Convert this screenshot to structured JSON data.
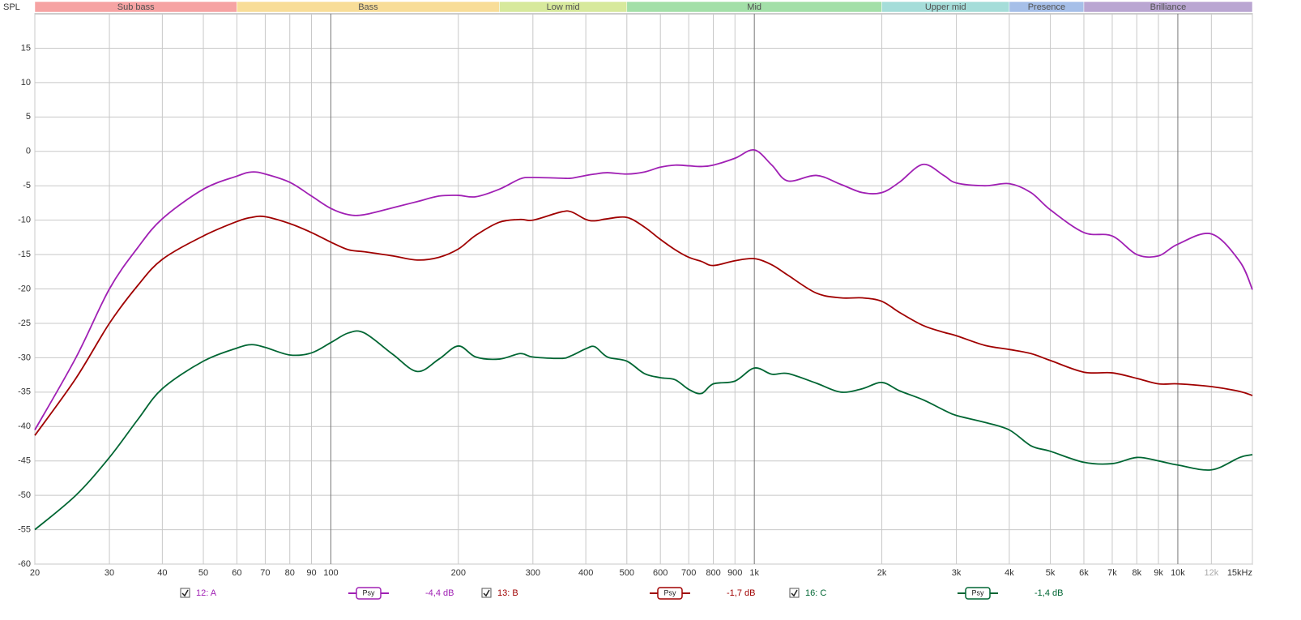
{
  "chart_data": {
    "type": "line",
    "y_axis_label": "SPL",
    "log_x": true,
    "grid": true,
    "xlim": [
      20,
      15000
    ],
    "ylim": [
      -60,
      20
    ],
    "yticks": [
      15,
      10,
      5,
      0,
      -5,
      -10,
      -15,
      -20,
      -25,
      -30,
      -35,
      -40,
      -45,
      -50,
      -55,
      -60
    ],
    "xticks": [
      20,
      30,
      40,
      50,
      60,
      70,
      80,
      90,
      100,
      200,
      300,
      400,
      500,
      600,
      700,
      800,
      900,
      {
        "value": 1000,
        "label": "1k"
      },
      {
        "value": 2000,
        "label": "2k"
      },
      {
        "value": 3000,
        "label": "3k"
      },
      {
        "value": 4000,
        "label": "4k"
      },
      {
        "value": 5000,
        "label": "5k"
      },
      {
        "value": 6000,
        "label": "6k"
      },
      {
        "value": 7000,
        "label": "7k"
      },
      {
        "value": 8000,
        "label": "8k"
      },
      {
        "value": 9000,
        "label": "9k"
      },
      {
        "value": 10000,
        "label": "10k"
      },
      {
        "value": 12000,
        "label": "12k",
        "color": "#aaaaaa"
      },
      {
        "value": 15000,
        "label": "15kHz"
      }
    ],
    "bands": [
      {
        "label": "Sub bass",
        "from": 20,
        "to": 60,
        "color": "#f6a3a3"
      },
      {
        "label": "Bass",
        "from": 60,
        "to": 250,
        "color": "#f8dd98"
      },
      {
        "label": "Low mid",
        "from": 250,
        "to": 500,
        "color": "#d7e99c"
      },
      {
        "label": "Mid",
        "from": 500,
        "to": 2000,
        "color": "#a3dfa8"
      },
      {
        "label": "Upper mid",
        "from": 2000,
        "to": 4000,
        "color": "#a5ddd9"
      },
      {
        "label": "Presence",
        "from": 4000,
        "to": 6000,
        "color": "#a6bfe8"
      },
      {
        "label": "Brilliance",
        "from": 6000,
        "to": 15000,
        "color": "#baa6d2"
      }
    ],
    "x": [
      20,
      25,
      30,
      35,
      40,
      50,
      60,
      65,
      70,
      80,
      90,
      100,
      110,
      120,
      140,
      160,
      180,
      200,
      220,
      250,
      280,
      300,
      350,
      370,
      400,
      420,
      450,
      500,
      550,
      600,
      650,
      700,
      750,
      800,
      900,
      1000,
      1100,
      1200,
      1400,
      1600,
      1800,
      2000,
      2200,
      2500,
      2800,
      3000,
      3500,
      4000,
      4500,
      5000,
      6000,
      7000,
      8000,
      9000,
      10000,
      12000,
      14000,
      15000
    ],
    "series": [
      {
        "name": "12: A",
        "smoothing": "Psy",
        "offset": "-4,4 dB",
        "color": "#a020b4",
        "values": [
          -40.5,
          -30,
          -20,
          -14,
          -9.8,
          -5.5,
          -3.6,
          -3.0,
          -3.3,
          -4.5,
          -6.5,
          -8.3,
          -9.2,
          -9.2,
          -8.2,
          -7.3,
          -6.5,
          -6.4,
          -6.6,
          -5.5,
          -4.0,
          -3.8,
          -3.9,
          -3.9,
          -3.5,
          -3.3,
          -3.1,
          -3.3,
          -3.0,
          -2.3,
          -2.0,
          -2.1,
          -2.2,
          -2.0,
          -1.0,
          0.2,
          -2.0,
          -4.3,
          -3.5,
          -4.8,
          -6.0,
          -6.0,
          -4.5,
          -1.9,
          -3.5,
          -4.6,
          -5.0,
          -4.7,
          -6.0,
          -8.5,
          -11.8,
          -12.3,
          -15.0,
          -15.2,
          -13.5,
          -12.0,
          -16.0,
          -20.1
        ]
      },
      {
        "name": "13: B",
        "smoothing": "Psy",
        "offset": "-1,7 dB",
        "color": "#a00000",
        "values": [
          -41.3,
          -33,
          -25,
          -19.5,
          -15.7,
          -12.3,
          -10.2,
          -9.6,
          -9.5,
          -10.5,
          -11.8,
          -13.2,
          -14.3,
          -14.6,
          -15.2,
          -15.8,
          -15.4,
          -14.2,
          -12.2,
          -10.3,
          -9.9,
          -10.0,
          -8.8,
          -8.8,
          -9.9,
          -10.1,
          -9.8,
          -9.6,
          -11.0,
          -12.8,
          -14.3,
          -15.4,
          -16.0,
          -16.6,
          -15.9,
          -15.6,
          -16.5,
          -18.0,
          -20.6,
          -21.3,
          -21.3,
          -21.8,
          -23.4,
          -25.3,
          -26.3,
          -26.8,
          -28.2,
          -28.8,
          -29.4,
          -30.4,
          -32.1,
          -32.2,
          -33.0,
          -33.8,
          -33.8,
          -34.2,
          -34.9,
          -35.5
        ]
      },
      {
        "name": "16: C",
        "smoothing": "Psy",
        "offset": "-1,4 dB",
        "color": "#006633",
        "values": [
          -55,
          -50,
          -44.5,
          -39,
          -34.5,
          -30.5,
          -28.6,
          -28.1,
          -28.5,
          -29.6,
          -29.3,
          -27.8,
          -26.4,
          -26.4,
          -29.5,
          -32.0,
          -30.2,
          -28.3,
          -29.9,
          -30.2,
          -29.4,
          -29.9,
          -30.1,
          -29.7,
          -28.7,
          -28.4,
          -29.9,
          -30.5,
          -32.3,
          -32.9,
          -33.2,
          -34.6,
          -35.2,
          -33.8,
          -33.4,
          -31.5,
          -32.4,
          -32.3,
          -33.7,
          -35.0,
          -34.5,
          -33.6,
          -34.8,
          -36.1,
          -37.6,
          -38.4,
          -39.4,
          -40.5,
          -42.8,
          -43.6,
          -45.2,
          -45.4,
          -44.5,
          -45.0,
          -45.6,
          -46.3,
          -44.5,
          -44.1
        ]
      }
    ]
  }
}
